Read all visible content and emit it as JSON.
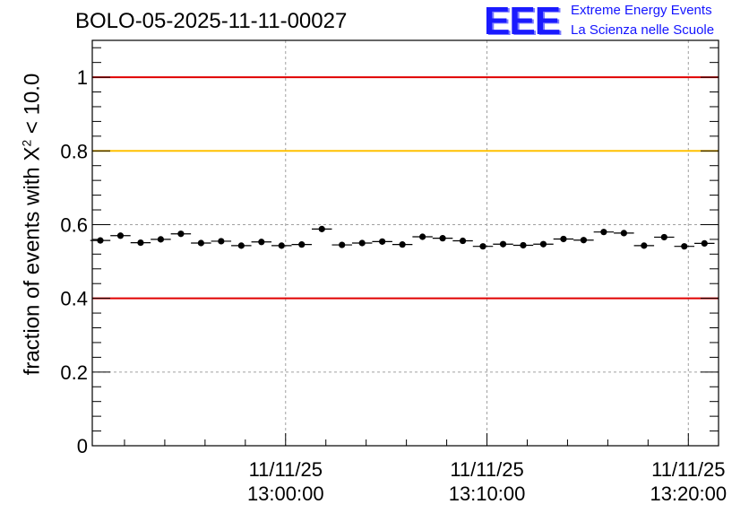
{
  "header": {
    "title": "BOLO-05-2025-11-11-00027",
    "logo_text": "EEE",
    "logo_line1": "Extreme Energy Events",
    "logo_line2": "La Scienza nelle Scuole"
  },
  "chart_data": {
    "type": "scatter",
    "title": "BOLO-05-2025-11-11-00027",
    "xlabel": "",
    "ylabel_prefix": "fraction of events with X",
    "ylabel_superscript": "2",
    "ylabel_suffix": " < 10.0",
    "x_unit": "minutes",
    "xlim": [
      -9.6,
      21.5
    ],
    "ylim": [
      0,
      1.1
    ],
    "yticks": [
      0,
      0.2,
      0.4,
      0.6,
      0.8,
      1
    ],
    "ytick_labels": [
      "0",
      "0.2",
      "0.4",
      "0.6",
      "0.8",
      "1"
    ],
    "xticks_major": [
      0,
      10,
      20
    ],
    "xtick_labels": [
      {
        "date": "11/11/25",
        "time": "13:00:00"
      },
      {
        "date": "11/11/25",
        "time": "13:10:00"
      },
      {
        "date": "11/11/25",
        "time": "13:20:00"
      }
    ],
    "grid": true,
    "reference_lines": [
      {
        "y": 1.0,
        "color": "#e00000"
      },
      {
        "y": 0.8,
        "color": "#ffc000"
      },
      {
        "y": 0.4,
        "color": "#e00000"
      }
    ],
    "series": [
      {
        "x": [
          -9.2,
          -8.2,
          -7.2,
          -6.2,
          -5.2,
          -4.2,
          -3.2,
          -2.2,
          -1.2,
          -0.2,
          0.8,
          1.8,
          2.8,
          3.8,
          4.8,
          5.8,
          6.8,
          7.8,
          8.8,
          9.8,
          10.8,
          11.8,
          12.8,
          13.8,
          14.8,
          15.8,
          16.8,
          17.8,
          18.8,
          19.8,
          20.8
        ],
        "y": [
          0.557,
          0.57,
          0.551,
          0.56,
          0.575,
          0.55,
          0.555,
          0.543,
          0.553,
          0.543,
          0.546,
          0.588,
          0.545,
          0.55,
          0.554,
          0.546,
          0.567,
          0.563,
          0.556,
          0.541,
          0.547,
          0.544,
          0.547,
          0.561,
          0.558,
          0.58,
          0.577,
          0.543,
          0.566,
          0.541,
          0.549
        ],
        "x_err": 0.5,
        "y_err": 0.008,
        "color": "#000000"
      }
    ]
  }
}
